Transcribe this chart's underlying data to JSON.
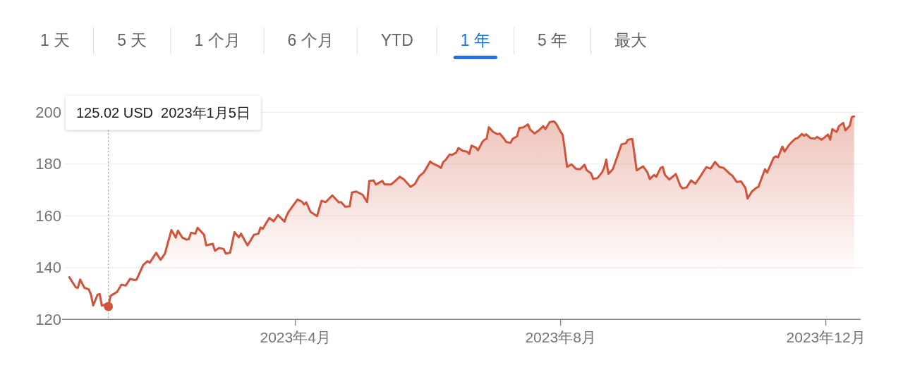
{
  "chart_data": [
    {
      "type": "other",
      "categories": [
        "1 天",
        "5 天",
        "1 个月",
        "6 个月",
        "YTD",
        "1 年",
        "5 年",
        "最大"
      ],
      "colors": [
        "#5f6368",
        "#5f6368",
        "#5f6368",
        "#5f6368",
        "#5f6368",
        "#1a73e8",
        "#5f6368",
        "#5f6368"
      ]
    },
    {
      "type": "area",
      "x": [
        "2022-12-18",
        "2022-12-21",
        "2022-12-22",
        "2022-12-23",
        "2022-12-25",
        "2022-12-27",
        "2022-12-28",
        "2022-12-29",
        "2022-12-31",
        "2023-01-01",
        "2023-01-02",
        "2023-01-04",
        "2023-01-05",
        "2023-01-06",
        "2023-01-09",
        "2023-01-11",
        "2023-01-13",
        "2023-01-15",
        "2023-01-17",
        "2023-01-18",
        "2023-01-21",
        "2023-01-23",
        "2023-01-24",
        "2023-01-27",
        "2023-01-29",
        "2023-01-31",
        "2023-02-03",
        "2023-02-05",
        "2023-02-06",
        "2023-02-08",
        "2023-02-10",
        "2023-02-11",
        "2023-02-12",
        "2023-02-14",
        "2023-02-15",
        "2023-02-18",
        "2023-02-19",
        "2023-02-22",
        "2023-02-23",
        "2023-02-25",
        "2023-02-27",
        "2023-02-28",
        "2023-03-02",
        "2023-03-04",
        "2023-03-06",
        "2023-03-07",
        "2023-03-10",
        "2023-03-13",
        "2023-03-15",
        "2023-03-16",
        "2023-03-17",
        "2023-03-20",
        "2023-03-22",
        "2023-03-24",
        "2023-03-27",
        "2023-03-28",
        "2023-03-29",
        "2023-04-02",
        "2023-04-04",
        "2023-04-05",
        "2023-04-06",
        "2023-04-08",
        "2023-04-11",
        "2023-04-13",
        "2023-04-15",
        "2023-04-18",
        "2023-04-21",
        "2023-04-22",
        "2023-04-24",
        "2023-04-26",
        "2023-04-27",
        "2023-04-29",
        "2023-05-02",
        "2023-05-04",
        "2023-05-05",
        "2023-05-07",
        "2023-05-08",
        "2023-05-11",
        "2023-05-12",
        "2023-05-15",
        "2023-05-17",
        "2023-05-19",
        "2023-05-21",
        "2023-05-24",
        "2023-05-26",
        "2023-05-28",
        "2023-05-30",
        "2023-05-31",
        "2023-06-02",
        "2023-06-03",
        "2023-06-06",
        "2023-06-07",
        "2023-06-08",
        "2023-06-09",
        "2023-06-11",
        "2023-06-12",
        "2023-06-14",
        "2023-06-15",
        "2023-06-17",
        "2023-06-19",
        "2023-06-20",
        "2023-06-21",
        "2023-06-23",
        "2023-06-24",
        "2023-06-26",
        "2023-06-27",
        "2023-06-28",
        "2023-06-29",
        "2023-07-01",
        "2023-07-03",
        "2023-07-04",
        "2023-07-06",
        "2023-07-07",
        "2023-07-09",
        "2023-07-10",
        "2023-07-12",
        "2023-07-13",
        "2023-07-15",
        "2023-07-17",
        "2023-07-18",
        "2023-07-20",
        "2023-07-22",
        "2023-07-24",
        "2023-07-25",
        "2023-07-27",
        "2023-07-29",
        "2023-07-30",
        "2023-08-01",
        "2023-08-02",
        "2023-08-04",
        "2023-08-06",
        "2023-08-08",
        "2023-08-10",
        "2023-08-12",
        "2023-08-13",
        "2023-08-15",
        "2023-08-16",
        "2023-08-18",
        "2023-08-20",
        "2023-08-21",
        "2023-08-22",
        "2023-08-23",
        "2023-08-25",
        "2023-08-26",
        "2023-08-29",
        "2023-08-31",
        "2023-09-01",
        "2023-09-03",
        "2023-09-05",
        "2023-09-08",
        "2023-09-10",
        "2023-09-11",
        "2023-09-13",
        "2023-09-14",
        "2023-09-16",
        "2023-09-17",
        "2023-09-18",
        "2023-09-20",
        "2023-09-23",
        "2023-09-25",
        "2023-09-26",
        "2023-09-28",
        "2023-09-30",
        "2023-10-02",
        "2023-10-04",
        "2023-10-07",
        "2023-10-09",
        "2023-10-11",
        "2023-10-13",
        "2023-10-15",
        "2023-10-18",
        "2023-10-19",
        "2023-10-21",
        "2023-10-23",
        "2023-10-25",
        "2023-10-26",
        "2023-10-28",
        "2023-10-30",
        "2023-10-31",
        "2023-11-03",
        "2023-11-04",
        "2023-11-07",
        "2023-11-08",
        "2023-11-09",
        "2023-11-11",
        "2023-11-12",
        "2023-11-14",
        "2023-11-15",
        "2023-11-17",
        "2023-11-18",
        "2023-11-20",
        "2023-11-21",
        "2023-11-22",
        "2023-11-24",
        "2023-11-26",
        "2023-11-27",
        "2023-11-29",
        "2023-11-30",
        "2023-12-02",
        "2023-12-03",
        "2023-12-04",
        "2023-12-06",
        "2023-12-07",
        "2023-12-09",
        "2023-12-10",
        "2023-12-12",
        "2023-12-13",
        "2023-12-14"
      ],
      "series": [
        {
          "color": "#d0533a",
          "values": [
            136.3,
            132.4,
            132.2,
            135.4,
            132.2,
            131.6,
            129.5,
            125.4,
            129.5,
            129.8,
            125.3,
            125.9,
            125.0,
            129.1,
            130.6,
            133.4,
            133.1,
            135.7,
            135.2,
            135.4,
            141.0,
            142.5,
            141.9,
            145.7,
            143.0,
            145.4,
            154.5,
            151.6,
            154.3,
            151.6,
            150.8,
            151.0,
            153.5,
            153.1,
            155.4,
            152.7,
            148.6,
            149.2,
            146.5,
            147.6,
            147.2,
            145.4,
            145.8,
            153.7,
            151.7,
            153.1,
            148.6,
            152.7,
            153.1,
            155.5,
            155.0,
            159.2,
            157.9,
            160.3,
            157.8,
            160.1,
            161.7,
            166.3,
            165.5,
            164.4,
            165.2,
            161.5,
            159.9,
            165.8,
            165.3,
            167.9,
            165.2,
            165.3,
            163.5,
            163.7,
            169.0,
            169.4,
            168.1,
            165.3,
            173.5,
            173.7,
            172.1,
            173.5,
            172.1,
            172.1,
            173.5,
            175.1,
            174.0,
            171.2,
            172.3,
            175.3,
            176.7,
            178.0,
            181.0,
            180.3,
            179.1,
            178.5,
            180.8,
            181.5,
            183.7,
            183.5,
            184.4,
            186.2,
            185.1,
            184.8,
            183.9,
            187.1,
            186.4,
            185.3,
            188.5,
            189.4,
            189.8,
            194.2,
            192.4,
            191.5,
            191.8,
            189.8,
            188.5,
            188.2,
            189.8,
            190.7,
            193.9,
            194.2,
            195.3,
            193.3,
            191.8,
            193.0,
            194.6,
            193.5,
            196.2,
            196.5,
            195.5,
            192.5,
            191.2,
            178.9,
            179.9,
            178.2,
            178.0,
            179.7,
            177.6,
            176.4,
            174.2,
            174.6,
            176.7,
            178.5,
            181.7,
            176.2,
            178.0,
            180.3,
            187.6,
            188.0,
            189.4,
            189.7,
            177.6,
            179.1,
            176.7,
            174.2,
            175.8,
            175.1,
            178.5,
            178.9,
            175.8,
            174.0,
            176.2,
            171.7,
            170.6,
            171.0,
            173.7,
            172.4,
            174.9,
            178.8,
            178.2,
            180.8,
            178.9,
            178.5,
            176.1,
            175.5,
            173.1,
            173.3,
            170.8,
            166.7,
            169.4,
            170.8,
            171.2,
            178.0,
            176.7,
            182.4,
            183.0,
            182.6,
            186.7,
            184.8,
            187.3,
            188.2,
            189.8,
            190.0,
            191.6,
            190.9,
            191.5,
            190.0,
            189.8,
            190.5,
            189.4,
            190.0,
            191.4,
            189.4,
            193.5,
            192.4,
            194.6,
            195.9,
            193.0,
            194.8,
            198.2,
            198.4
          ]
        },
        {
          "type": "scatter",
          "x": [
            "2023-01-05"
          ],
          "values": [
            125.0
          ],
          "color": "#d0533a",
          "marker": "circle"
        }
      ],
      "xlim": [
        "2022-12-16",
        "2023-12-18"
      ],
      "xticks": [
        {
          "value": "2023-04-01",
          "label": "2023年4月"
        },
        {
          "value": "2023-08-01",
          "label": "2023年8月"
        },
        {
          "value": "2023-12-01",
          "label": "2023年12月"
        }
      ],
      "ylim": [
        120,
        200
      ],
      "yticks": [
        120,
        140,
        160,
        180,
        200
      ],
      "grid": "y",
      "ref_lines": [
        {
          "axis": "x",
          "value": "2023-01-05",
          "label": "125.02 USD  2023年1月5日",
          "color": "#9aa0a6",
          "line_style": "dotted"
        }
      ]
    }
  ]
}
